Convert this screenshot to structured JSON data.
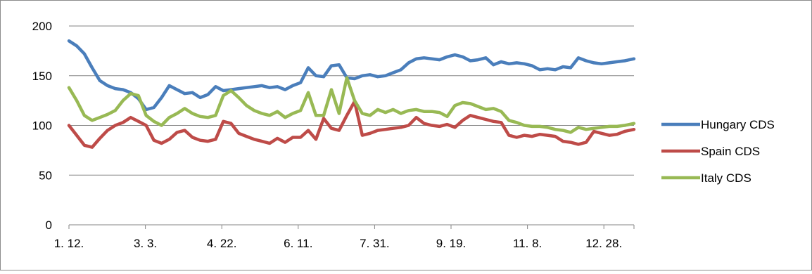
{
  "chart_data": {
    "type": "line",
    "title": "",
    "xlabel": "",
    "ylabel": "",
    "ylim": [
      0,
      200
    ],
    "yticks": [
      0,
      50,
      100,
      150,
      200
    ],
    "ytick_labels": [
      "0",
      "50",
      "100",
      "150",
      "200"
    ],
    "xtick_labels": [
      "1. 12.",
      "3. 3.",
      "4. 22.",
      "6. 11.",
      "7. 31.",
      "9. 19.",
      "11. 8.",
      "12. 28."
    ],
    "grid": "horizontal",
    "legend_position": "right",
    "x_index_range": [
      0,
      366
    ],
    "series": [
      {
        "name": "Hungary CDS",
        "color": "#4a7ebb",
        "x": [
          0,
          5,
          10,
          15,
          20,
          25,
          30,
          35,
          40,
          45,
          50,
          55,
          60,
          65,
          70,
          75,
          80,
          85,
          90,
          95,
          100,
          105,
          110,
          115,
          120,
          125,
          130,
          135,
          140,
          145,
          150,
          155,
          160,
          165,
          170,
          175,
          180,
          185,
          190,
          195,
          200,
          205,
          210,
          215,
          220,
          225,
          230,
          235,
          240,
          245,
          250,
          255,
          260,
          265,
          270,
          275,
          280,
          285,
          290,
          295,
          300,
          305,
          310,
          315,
          320,
          325,
          330,
          335,
          340,
          345,
          350,
          355,
          360,
          366
        ],
        "y": [
          185,
          180,
          172,
          158,
          145,
          140,
          137,
          136,
          133,
          127,
          116,
          118,
          128,
          140,
          136,
          132,
          133,
          128,
          131,
          139,
          135,
          136,
          137,
          138,
          139,
          140,
          138,
          139,
          136,
          140,
          143,
          158,
          150,
          149,
          160,
          161,
          148,
          147,
          150,
          151,
          149,
          150,
          153,
          156,
          163,
          167,
          168,
          167,
          166,
          169,
          171,
          169,
          165,
          166,
          168,
          161,
          164,
          162,
          163,
          162,
          160,
          156,
          157,
          156,
          159,
          158,
          168,
          165,
          163,
          162,
          163,
          164,
          165,
          167
        ]
      },
      {
        "name": "Spain CDS",
        "color": "#be4b48",
        "x": [
          0,
          5,
          10,
          15,
          20,
          25,
          30,
          35,
          40,
          45,
          50,
          55,
          60,
          65,
          70,
          75,
          80,
          85,
          90,
          95,
          100,
          105,
          110,
          115,
          120,
          125,
          130,
          135,
          140,
          145,
          150,
          155,
          160,
          165,
          170,
          175,
          180,
          185,
          190,
          195,
          200,
          205,
          210,
          215,
          220,
          225,
          230,
          235,
          240,
          245,
          250,
          255,
          260,
          265,
          270,
          275,
          280,
          285,
          290,
          295,
          300,
          305,
          310,
          315,
          320,
          325,
          330,
          335,
          340,
          345,
          350,
          355,
          360,
          366
        ],
        "y": [
          100,
          90,
          80,
          78,
          87,
          95,
          100,
          103,
          108,
          104,
          100,
          85,
          82,
          86,
          93,
          95,
          88,
          85,
          84,
          86,
          104,
          102,
          92,
          89,
          86,
          84,
          82,
          87,
          83,
          88,
          88,
          95,
          86,
          107,
          97,
          95,
          110,
          124,
          90,
          92,
          95,
          96,
          97,
          98,
          100,
          108,
          102,
          100,
          99,
          101,
          98,
          105,
          110,
          108,
          106,
          104,
          103,
          90,
          88,
          90,
          89,
          91,
          90,
          89,
          84,
          83,
          81,
          83,
          94,
          92,
          90,
          91,
          94,
          96
        ]
      },
      {
        "name": "Italy CDS",
        "color": "#98b954",
        "x": [
          0,
          5,
          10,
          15,
          20,
          25,
          30,
          35,
          40,
          45,
          50,
          55,
          60,
          65,
          70,
          75,
          80,
          85,
          90,
          95,
          100,
          105,
          110,
          115,
          120,
          125,
          130,
          135,
          140,
          145,
          150,
          155,
          160,
          165,
          170,
          175,
          180,
          185,
          190,
          195,
          200,
          205,
          210,
          215,
          220,
          225,
          230,
          235,
          240,
          245,
          250,
          255,
          260,
          265,
          270,
          275,
          280,
          285,
          290,
          295,
          300,
          305,
          310,
          315,
          320,
          325,
          330,
          335,
          340,
          345,
          350,
          355,
          360,
          366
        ],
        "y": [
          138,
          125,
          110,
          105,
          108,
          111,
          115,
          125,
          132,
          130,
          110,
          104,
          100,
          108,
          112,
          117,
          112,
          109,
          108,
          110,
          130,
          135,
          128,
          120,
          115,
          112,
          110,
          114,
          108,
          112,
          115,
          133,
          110,
          110,
          136,
          112,
          148,
          125,
          112,
          110,
          116,
          113,
          116,
          112,
          115,
          116,
          114,
          114,
          113,
          109,
          120,
          123,
          122,
          119,
          116,
          117,
          114,
          105,
          103,
          100,
          99,
          99,
          98,
          96,
          95,
          93,
          98,
          96,
          97,
          98,
          99,
          99,
          100,
          102
        ]
      }
    ]
  }
}
